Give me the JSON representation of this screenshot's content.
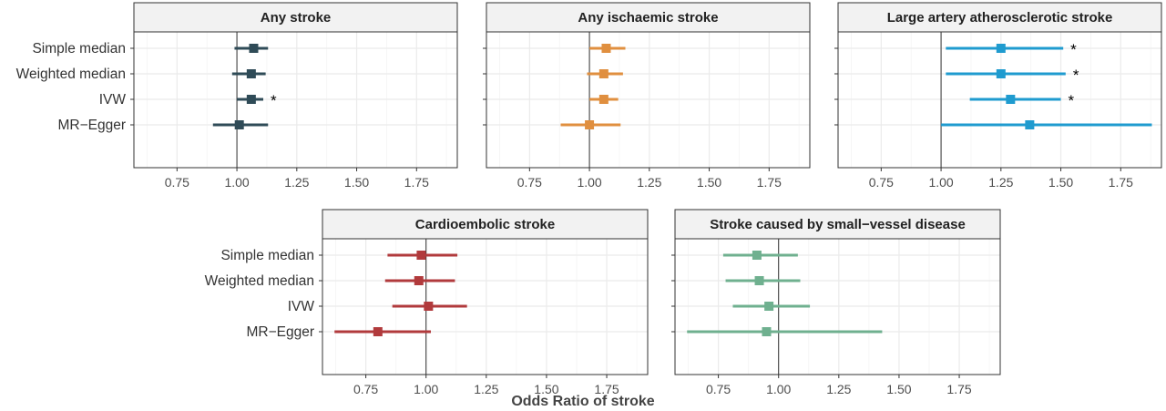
{
  "x_axis_title": "Odds Ratio of stroke",
  "colors": {
    "any_stroke": "#2f4b57",
    "any_ischaemic_stroke": "#e08f3f",
    "large_artery_atherosclerotic_stroke": "#1f9bcf",
    "cardioembolic_stroke": "#b13a3c",
    "small_vessel_disease_stroke": "#6fb08f"
  },
  "chart_data": [
    {
      "type": "forest",
      "title": "Any stroke",
      "color_key": "any_stroke",
      "methods": [
        "Simple median",
        "Weighted median",
        "IVW",
        "MR−Egger"
      ],
      "estimates": [
        1.07,
        1.06,
        1.06,
        1.01
      ],
      "ci_lower": [
        0.99,
        0.98,
        1.0,
        0.9
      ],
      "ci_upper": [
        1.13,
        1.12,
        1.11,
        1.13
      ],
      "significant": [
        false,
        false,
        true,
        false
      ],
      "xlim": [
        0.57,
        1.92
      ],
      "xticks": [
        0.75,
        1.0,
        1.25,
        1.5,
        1.75
      ],
      "xtick_labels": [
        "0.75",
        "1.00",
        "1.25",
        "1.50",
        "1.75"
      ],
      "show_method_labels": true
    },
    {
      "type": "forest",
      "title": "Any ischaemic stroke",
      "color_key": "any_ischaemic_stroke",
      "methods": [
        "Simple median",
        "Weighted median",
        "IVW",
        "MR−Egger"
      ],
      "estimates": [
        1.07,
        1.06,
        1.06,
        1.0
      ],
      "ci_lower": [
        1.0,
        0.99,
        1.0,
        0.88
      ],
      "ci_upper": [
        1.15,
        1.14,
        1.12,
        1.13
      ],
      "significant": [
        false,
        false,
        false,
        false
      ],
      "xlim": [
        0.57,
        1.92
      ],
      "xticks": [
        0.75,
        1.0,
        1.25,
        1.5,
        1.75
      ],
      "xtick_labels": [
        "0.75",
        "1.00",
        "1.25",
        "1.50",
        "1.75"
      ],
      "show_method_labels": false
    },
    {
      "type": "forest",
      "title": "Large artery atherosclerotic stroke",
      "color_key": "large_artery_atherosclerotic_stroke",
      "methods": [
        "Simple median",
        "Weighted median",
        "IVW",
        "MR−Egger"
      ],
      "estimates": [
        1.25,
        1.25,
        1.29,
        1.37
      ],
      "ci_lower": [
        1.02,
        1.02,
        1.12,
        1.0
      ],
      "ci_upper": [
        1.51,
        1.52,
        1.5,
        1.88
      ],
      "significant": [
        true,
        true,
        true,
        false
      ],
      "xlim": [
        0.57,
        1.92
      ],
      "xticks": [
        0.75,
        1.0,
        1.25,
        1.5,
        1.75
      ],
      "xtick_labels": [
        "0.75",
        "1.00",
        "1.25",
        "1.50",
        "1.75"
      ],
      "show_method_labels": false
    },
    {
      "type": "forest",
      "title": "Cardioembolic stroke",
      "color_key": "cardioembolic_stroke",
      "methods": [
        "Simple median",
        "Weighted median",
        "IVW",
        "MR−Egger"
      ],
      "estimates": [
        0.98,
        0.97,
        1.01,
        0.8
      ],
      "ci_lower": [
        0.84,
        0.83,
        0.86,
        0.62
      ],
      "ci_upper": [
        1.13,
        1.12,
        1.17,
        1.02
      ],
      "significant": [
        false,
        false,
        false,
        false
      ],
      "xlim": [
        0.57,
        1.92
      ],
      "xticks": [
        0.75,
        1.0,
        1.25,
        1.5,
        1.75
      ],
      "xtick_labels": [
        "0.75",
        "1.00",
        "1.25",
        "1.50",
        "1.75"
      ],
      "show_method_labels": true
    },
    {
      "type": "forest",
      "title": "Stroke caused by small−vessel disease",
      "color_key": "small_vessel_disease_stroke",
      "methods": [
        "Simple median",
        "Weighted median",
        "IVW",
        "MR−Egger"
      ],
      "estimates": [
        0.91,
        0.92,
        0.96,
        0.95
      ],
      "ci_lower": [
        0.77,
        0.78,
        0.81,
        0.62
      ],
      "ci_upper": [
        1.08,
        1.09,
        1.13,
        1.43
      ],
      "significant": [
        false,
        false,
        false,
        false
      ],
      "xlim": [
        0.57,
        1.92
      ],
      "xticks": [
        0.75,
        1.0,
        1.25,
        1.5,
        1.75
      ],
      "xtick_labels": [
        "0.75",
        "1.00",
        "1.25",
        "1.50",
        "1.75"
      ],
      "show_method_labels": false
    }
  ]
}
